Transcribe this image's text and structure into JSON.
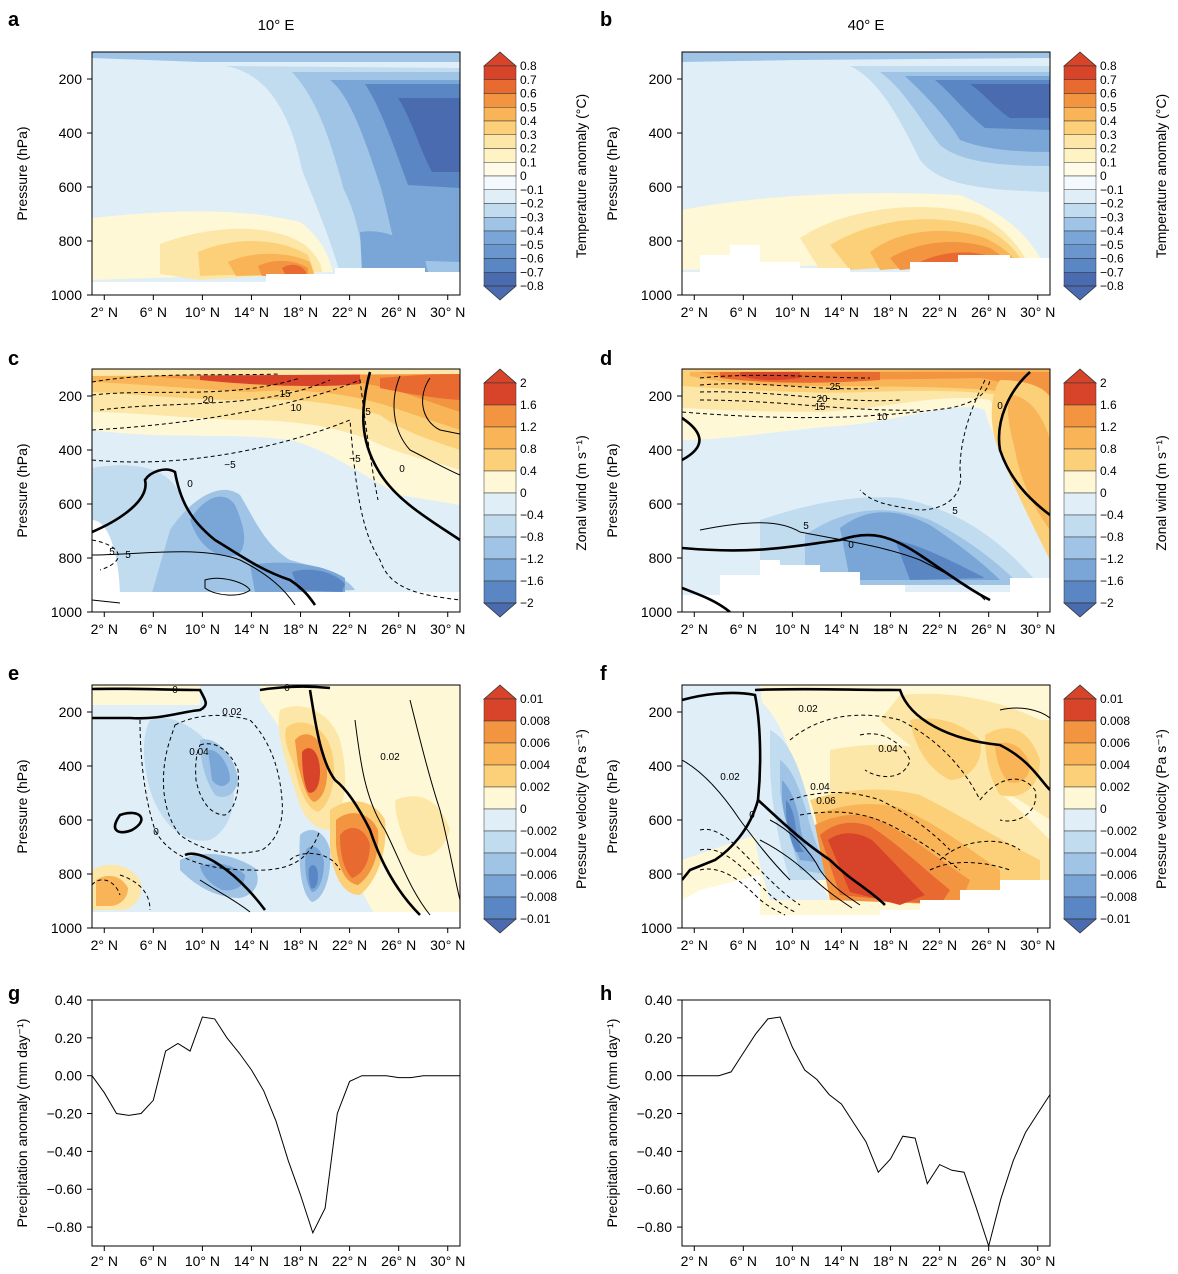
{
  "palettes": {
    "div": [
      "#4a6bb0",
      "#5b86c4",
      "#79a6d6",
      "#9fc4e5",
      "#c1dbef",
      "#e0eef8",
      "#ffffff",
      "#fff8d6",
      "#fde7a8",
      "#fcd079",
      "#f9b457",
      "#f29440",
      "#e86a31",
      "#d8442a"
    ],
    "tri_low": "#4a6bb0",
    "tri_high": "#d8442a"
  },
  "colorbars": {
    "temp": {
      "label": "Temperature anomaly (°C)",
      "labels": [
        "0.8",
        "0.7",
        "0.6",
        "0.5",
        "0.4",
        "0.3",
        "0.2",
        "0.1",
        "0",
        "−0.1",
        "−0.2",
        "−0.3",
        "−0.4",
        "−0.5",
        "−0.6",
        "−0.7",
        "−0.8"
      ]
    },
    "wind": {
      "label": "Zonal wind (m s⁻¹)",
      "labels": [
        "2",
        "1.6",
        "1.2",
        "0.8",
        "0.4",
        "0",
        "−0.4",
        "−0.8",
        "−1.2",
        "−1.6",
        "−2"
      ]
    },
    "omega": {
      "label": "Pressure velocity (Pa s⁻¹)",
      "labels": [
        "0.01",
        "0.008",
        "0.006",
        "0.004",
        "0.002",
        "0",
        "−0.002",
        "−0.004",
        "−0.006",
        "−0.008",
        "−0.01"
      ]
    }
  },
  "axes": {
    "pressure_label": "Pressure (hPa)",
    "pressure_ticks": [
      "200",
      "400",
      "600",
      "800",
      "1000"
    ],
    "precip_label": "Precipitation anomaly  (mm day⁻¹)",
    "precip_ticks": [
      "0.40",
      "0.20",
      "0.00",
      "−0.20",
      "−0.40",
      "−0.60",
      "−0.80"
    ],
    "lat_ticks": [
      "2° N",
      "6° N",
      "10° N",
      "14° N",
      "18° N",
      "22° N",
      "26° N",
      "30° N"
    ]
  },
  "column_titles": {
    "left": "10° E",
    "right": "40° E"
  },
  "panels": {
    "a": {
      "letter": "a"
    },
    "b": {
      "letter": "b"
    },
    "c": {
      "letter": "c",
      "contour_labels": [
        "20",
        "15",
        "10",
        "5",
        "−5",
        "0",
        "0",
        "5",
        "−5",
        "5"
      ]
    },
    "d": {
      "letter": "d",
      "contour_labels": [
        "25",
        "20",
        "15",
        "10",
        "0",
        "0",
        "5",
        "5"
      ]
    },
    "e": {
      "letter": "e",
      "contour_labels": [
        "0",
        "0",
        "0.02",
        "0.04",
        "0.02",
        "0"
      ]
    },
    "f": {
      "letter": "f",
      "contour_labels": [
        "0.02",
        "0.04",
        "0.02",
        "0",
        "0.04",
        "0.06"
      ]
    },
    "g": {
      "letter": "g"
    },
    "h": {
      "letter": "h"
    }
  },
  "chart_data": [
    {
      "panel": "g",
      "type": "line",
      "title": "",
      "xlabel": "",
      "ylabel": "Precipitation anomaly  (mm day⁻¹)",
      "xlim": [
        1,
        31
      ],
      "ylim": [
        -0.9,
        0.4
      ],
      "x": [
        1,
        2,
        3,
        4,
        5,
        6,
        7,
        8,
        9,
        10,
        11,
        12,
        13,
        14,
        15,
        16,
        17,
        18,
        19,
        20,
        21,
        22,
        23,
        24,
        25,
        26,
        27,
        28,
        29,
        30,
        31
      ],
      "series": [
        {
          "values": [
            0.0,
            -0.09,
            -0.2,
            -0.21,
            -0.2,
            -0.13,
            0.13,
            0.17,
            0.13,
            0.31,
            0.3,
            0.2,
            0.12,
            0.03,
            -0.08,
            -0.24,
            -0.45,
            -0.63,
            -0.83,
            -0.7,
            -0.2,
            -0.03,
            0.0,
            0.0,
            0.0,
            -0.01,
            -0.01,
            0.0,
            0.0,
            0.0,
            0.0
          ]
        }
      ]
    },
    {
      "panel": "h",
      "type": "line",
      "title": "",
      "xlabel": "",
      "ylabel": "Precipitation anomaly  (mm day⁻¹)",
      "xlim": [
        1,
        31
      ],
      "ylim": [
        -0.9,
        0.4
      ],
      "x": [
        1,
        2,
        3,
        4,
        5,
        6,
        7,
        8,
        9,
        10,
        11,
        12,
        13,
        14,
        15,
        16,
        17,
        18,
        19,
        20,
        21,
        22,
        23,
        24,
        25,
        26,
        27,
        28,
        29,
        30,
        31
      ],
      "series": [
        {
          "values": [
            0.0,
            0.0,
            0.0,
            0.0,
            0.02,
            0.12,
            0.22,
            0.3,
            0.31,
            0.15,
            0.03,
            -0.02,
            -0.1,
            -0.15,
            -0.25,
            -0.35,
            -0.51,
            -0.44,
            -0.32,
            -0.33,
            -0.57,
            -0.47,
            -0.5,
            -0.51,
            -0.7,
            -0.9,
            -0.65,
            -0.45,
            -0.3,
            -0.2,
            -0.1
          ]
        }
      ]
    }
  ]
}
